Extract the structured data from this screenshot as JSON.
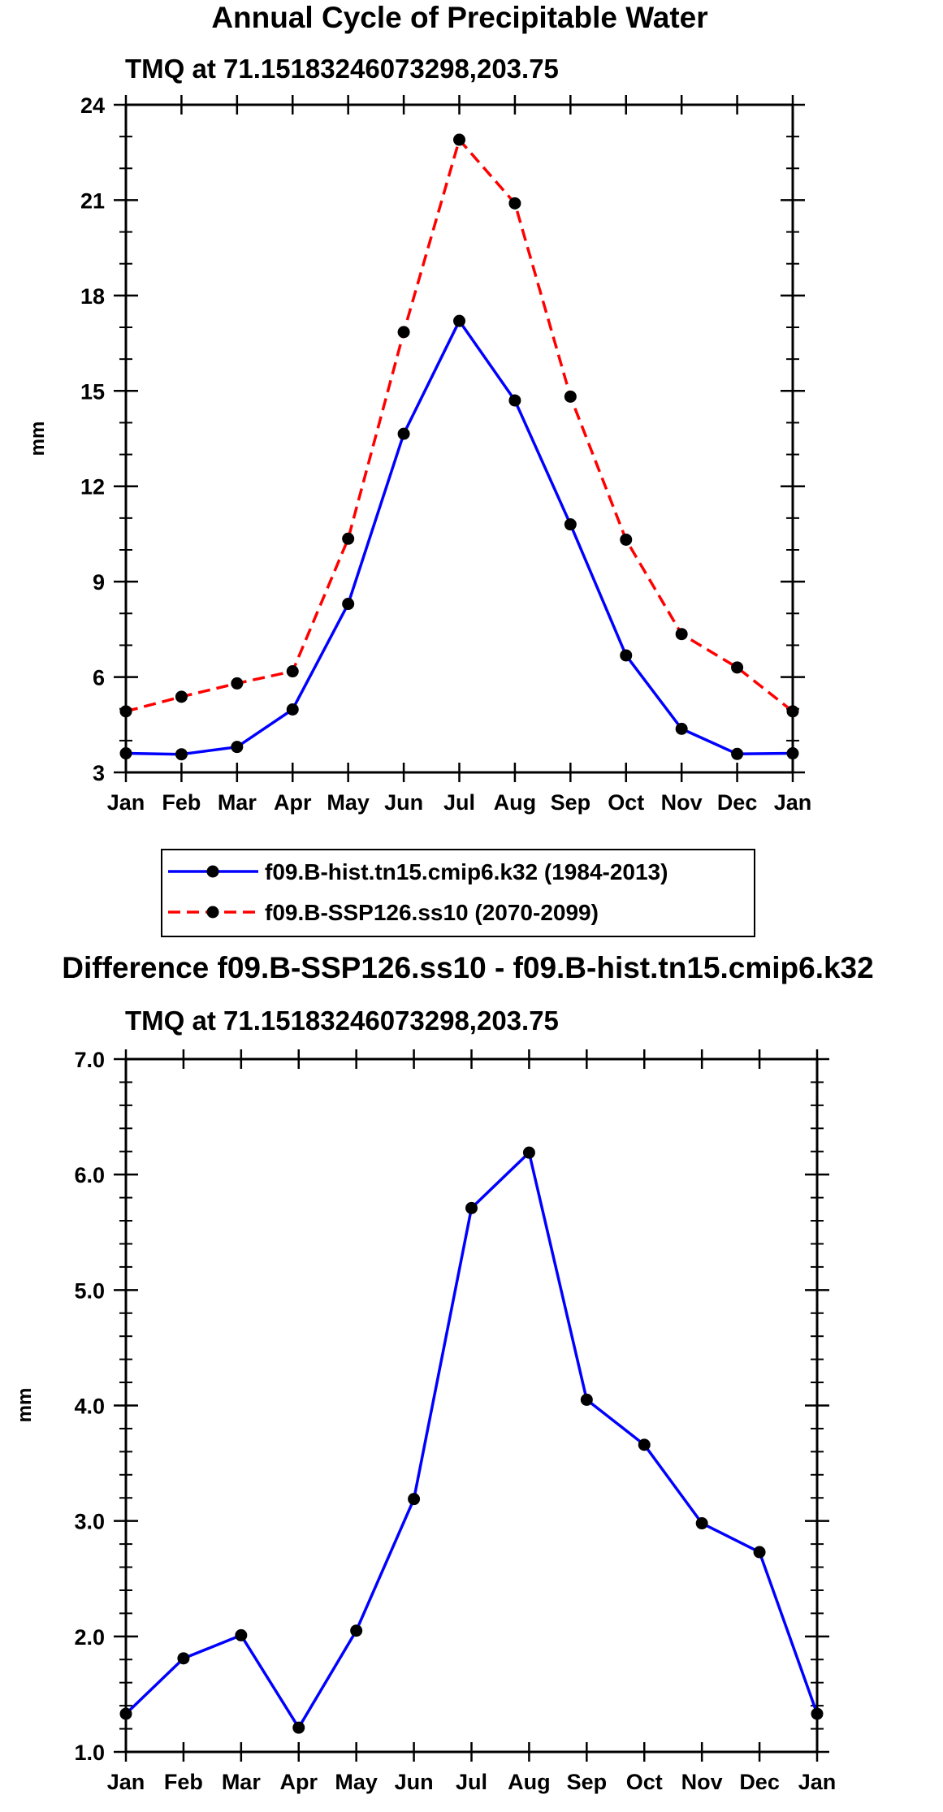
{
  "chart_data": [
    {
      "type": "line",
      "title": "Annual Cycle of Precipitable Water",
      "subtitle": "TMQ at 71.15183246073298,203.75",
      "xlabel": "",
      "ylabel": "mm",
      "categories": [
        "Jan",
        "Feb",
        "Mar",
        "Apr",
        "May",
        "Jun",
        "Jul",
        "Aug",
        "Sep",
        "Oct",
        "Nov",
        "Dec",
        "Jan"
      ],
      "ylim": [
        3,
        24
      ],
      "yticks": [
        3,
        6,
        9,
        12,
        15,
        18,
        21,
        24
      ],
      "ytick_labels": [
        "3",
        "6",
        "9",
        "12",
        "15",
        "18",
        "21",
        "24"
      ],
      "grid": false,
      "legend_position": "bottom",
      "series": [
        {
          "name": "f09.B-hist.tn15.cmip6.k32 (1984-2013)",
          "color": "#0000ff",
          "line_style": "solid",
          "values": [
            3.6,
            3.57,
            3.8,
            4.98,
            8.3,
            13.65,
            17.2,
            14.7,
            10.8,
            6.68,
            4.37,
            3.58,
            3.6
          ]
        },
        {
          "name": "f09.B-SSP126.ss10 (2070-2099)",
          "color": "#ff0000",
          "line_style": "dashed",
          "values": [
            4.92,
            5.38,
            5.8,
            6.18,
            10.35,
            16.85,
            22.9,
            20.9,
            14.82,
            10.32,
            7.35,
            6.3,
            4.92
          ]
        }
      ]
    },
    {
      "type": "line",
      "title": "Difference f09.B-SSP126.ss10 - f09.B-hist.tn15.cmip6.k32",
      "subtitle": "TMQ at 71.15183246073298,203.75",
      "xlabel": "",
      "ylabel": "mm",
      "categories": [
        "Jan",
        "Feb",
        "Mar",
        "Apr",
        "May",
        "Jun",
        "Jul",
        "Aug",
        "Sep",
        "Oct",
        "Nov",
        "Dec",
        "Jan"
      ],
      "ylim": [
        1.0,
        7.0
      ],
      "yticks": [
        1,
        2,
        3,
        4,
        5,
        6,
        7
      ],
      "ytick_labels": [
        "1.0",
        "2.0",
        "3.0",
        "4.0",
        "5.0",
        "6.0",
        "7.0"
      ],
      "grid": false,
      "series": [
        {
          "name": "Difference",
          "color": "#0000ff",
          "line_style": "solid",
          "values": [
            1.33,
            1.81,
            2.01,
            1.21,
            2.05,
            3.19,
            5.71,
            6.19,
            4.05,
            3.66,
            2.98,
            2.73,
            1.33
          ]
        }
      ]
    }
  ]
}
